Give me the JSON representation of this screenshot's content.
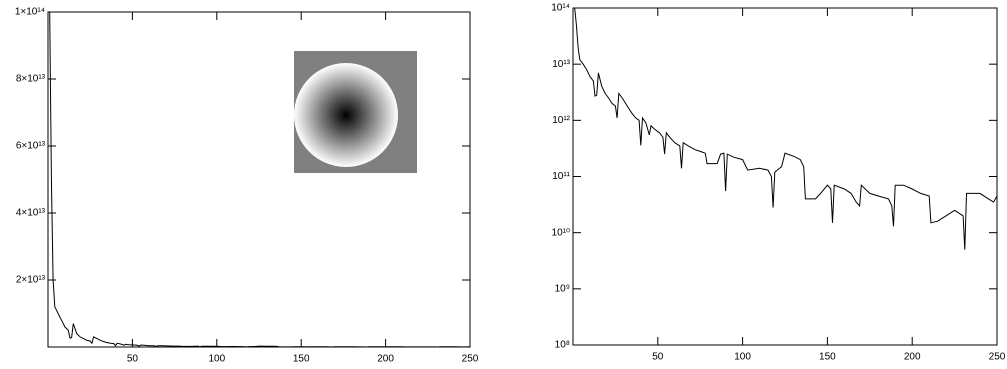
{
  "chart_data": [
    {
      "type": "line",
      "color": "#000000",
      "yscale": "linear",
      "xlim": [
        0,
        250
      ],
      "xticks": [
        50,
        100,
        150,
        200,
        250
      ],
      "ylim": [
        0,
        100000000000000.0
      ],
      "yticks": [
        {
          "value": 20000000000000.0,
          "label": "2×10¹³"
        },
        {
          "value": 40000000000000.0,
          "label": "4×10¹³"
        },
        {
          "value": 60000000000000.0,
          "label": "6×10¹³"
        },
        {
          "value": 80000000000000.0,
          "label": "8×10¹³"
        },
        {
          "value": 100000000000000.0,
          "label": "1×10¹⁴"
        }
      ],
      "x": [
        1,
        2,
        3,
        4,
        6,
        8,
        10,
        12,
        13,
        14,
        15,
        17,
        19,
        21,
        23,
        25,
        26,
        27,
        29,
        31,
        33,
        35,
        37,
        39,
        40,
        41,
        43,
        45,
        46,
        48,
        51,
        53,
        54,
        55,
        57,
        60,
        63,
        64,
        65,
        68,
        72,
        75,
        78,
        79,
        85,
        87,
        89,
        90,
        91,
        95,
        100,
        103,
        110,
        115,
        117,
        118,
        119,
        123,
        125,
        130,
        134,
        136,
        137,
        143,
        146,
        150,
        152,
        153,
        154,
        160,
        164,
        167,
        169,
        170,
        175,
        180,
        186,
        188,
        189,
        190,
        195,
        200,
        205,
        210,
        211,
        215,
        220,
        225,
        230,
        231,
        232,
        240,
        245,
        248,
        250
      ],
      "values": [
        100000000000000.0,
        50000000000000.0,
        20000000000000.0,
        12000000000000.0,
        10000000000000.0,
        8000000000000.0,
        6000000000000.0,
        5000000000000.0,
        2700000000000.0,
        2800000000000.0,
        7000000000000.0,
        4000000000000.0,
        3000000000000.0,
        2500000000000.0,
        2000000000000.0,
        1800000000000.0,
        1100000000000.0,
        3000000000000.0,
        2500000000000.0,
        2000000000000.0,
        1600000000000.0,
        1300000000000.0,
        1100000000000.0,
        1000000000000.0,
        360000000000.0,
        1100000000000.0,
        900000000000.0,
        550000000000.0,
        800000000000.0,
        700000000000.0,
        600000000000.0,
        500000000000.0,
        250000000000.0,
        600000000000.0,
        500000000000.0,
        400000000000.0,
        350000000000.0,
        140000000000.0,
        400000000000.0,
        350000000000.0,
        300000000000.0,
        280000000000.0,
        260000000000.0,
        170000000000.0,
        170000000000.0,
        250000000000.0,
        260000000000.0,
        55000000000.0,
        250000000000.0,
        220000000000.0,
        200000000000.0,
        130000000000.0,
        140000000000.0,
        130000000000.0,
        100000000000.0,
        28000000000.0,
        120000000000.0,
        150000000000.0,
        260000000000.0,
        230000000000.0,
        200000000000.0,
        150000000000.0,
        40000000000.0,
        40000000000.0,
        50000000000.0,
        70000000000.0,
        60000000000.0,
        15000000000.0,
        70000000000.0,
        60000000000.0,
        50000000000.0,
        35000000000.0,
        30000000000.0,
        70000000000.0,
        50000000000.0,
        45000000000.0,
        40000000000.0,
        30000000000.0,
        13000000000.0,
        70000000000.0,
        70000000000.0,
        60000000000.0,
        50000000000.0,
        45000000000.0,
        15000000000.0,
        16000000000.0,
        20000000000.0,
        25000000000.0,
        20000000000.0,
        5000000000.0,
        50000000000.0,
        50000000000.0,
        40000000000.0,
        35000000000.0,
        45000000000.0
      ]
    },
    {
      "type": "line",
      "color": "#000000",
      "yscale": "log",
      "xlim": [
        0,
        250
      ],
      "xticks": [
        50,
        100,
        150,
        200,
        250
      ],
      "ylim": [
        100000000.0,
        100000000000000.0
      ],
      "yticks": [
        {
          "value": 100000000.0,
          "label": "10⁸"
        },
        {
          "value": 1000000000.0,
          "label": "10⁹"
        },
        {
          "value": 10000000000.0,
          "label": "10¹⁰"
        },
        {
          "value": 100000000000.0,
          "label": "10¹¹"
        },
        {
          "value": 1000000000000.0,
          "label": "10¹²"
        },
        {
          "value": 10000000000000.0,
          "label": "10¹³"
        },
        {
          "value": 100000000000000.0,
          "label": "10¹⁴"
        }
      ],
      "x": [
        1,
        2,
        3,
        4,
        6,
        8,
        10,
        12,
        13,
        14,
        15,
        17,
        19,
        21,
        23,
        25,
        26,
        27,
        29,
        31,
        33,
        35,
        37,
        39,
        40,
        41,
        43,
        45,
        46,
        48,
        51,
        53,
        54,
        55,
        57,
        60,
        63,
        64,
        65,
        68,
        72,
        75,
        78,
        79,
        85,
        87,
        89,
        90,
        91,
        95,
        100,
        103,
        110,
        115,
        117,
        118,
        119,
        123,
        125,
        130,
        134,
        136,
        137,
        143,
        146,
        150,
        152,
        153,
        154,
        160,
        164,
        167,
        169,
        170,
        175,
        180,
        186,
        188,
        189,
        190,
        195,
        200,
        205,
        210,
        211,
        215,
        220,
        225,
        230,
        231,
        232,
        240,
        245,
        248,
        250
      ],
      "values": [
        100000000000000.0,
        50000000000000.0,
        20000000000000.0,
        12000000000000.0,
        10000000000000.0,
        8000000000000.0,
        6000000000000.0,
        5000000000000.0,
        2700000000000.0,
        2800000000000.0,
        7000000000000.0,
        4000000000000.0,
        3000000000000.0,
        2500000000000.0,
        2000000000000.0,
        1800000000000.0,
        1100000000000.0,
        3000000000000.0,
        2500000000000.0,
        2000000000000.0,
        1600000000000.0,
        1300000000000.0,
        1100000000000.0,
        1000000000000.0,
        360000000000.0,
        1100000000000.0,
        900000000000.0,
        550000000000.0,
        800000000000.0,
        700000000000.0,
        600000000000.0,
        500000000000.0,
        250000000000.0,
        600000000000.0,
        500000000000.0,
        400000000000.0,
        350000000000.0,
        140000000000.0,
        400000000000.0,
        350000000000.0,
        300000000000.0,
        280000000000.0,
        260000000000.0,
        170000000000.0,
        170000000000.0,
        250000000000.0,
        260000000000.0,
        55000000000.0,
        250000000000.0,
        220000000000.0,
        200000000000.0,
        130000000000.0,
        140000000000.0,
        130000000000.0,
        100000000000.0,
        28000000000.0,
        120000000000.0,
        150000000000.0,
        260000000000.0,
        230000000000.0,
        200000000000.0,
        150000000000.0,
        40000000000.0,
        40000000000.0,
        50000000000.0,
        70000000000.0,
        60000000000.0,
        15000000000.0,
        70000000000.0,
        60000000000.0,
        50000000000.0,
        35000000000.0,
        30000000000.0,
        70000000000.0,
        50000000000.0,
        45000000000.0,
        40000000000.0,
        30000000000.0,
        13000000000.0,
        70000000000.0,
        70000000000.0,
        60000000000.0,
        50000000000.0,
        45000000000.0,
        15000000000.0,
        16000000000.0,
        20000000000.0,
        25000000000.0,
        20000000000.0,
        5000000000.0,
        50000000000.0,
        50000000000.0,
        40000000000.0,
        35000000000.0,
        45000000000.0
      ]
    }
  ]
}
